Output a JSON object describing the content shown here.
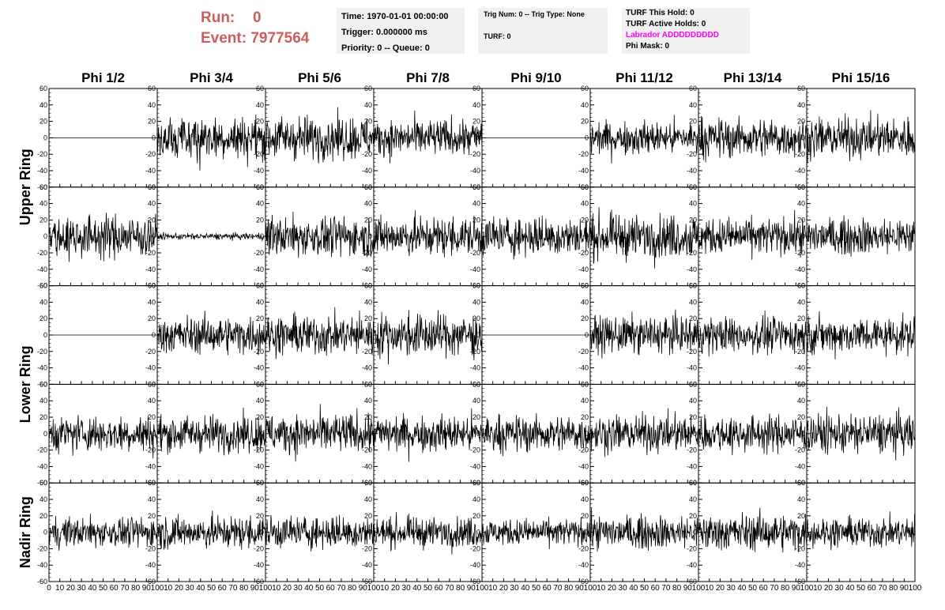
{
  "header": {
    "run_label": "Run:",
    "run_value": "0",
    "event_label": "Event:",
    "event_value": "7977564",
    "time_line": "Time: 1970-01-01 00:00:00",
    "trigger_line": "Trigger: 0.000000 ms",
    "priority_line": "Priority: 0 -- Queue: 0",
    "trig_num_line": "Trig Num: 0 -- Trig Type: None",
    "turf_line": "TURF: 0",
    "turf_this_hold": "TURF This Hold: 0",
    "turf_active_holds": "TURF Active Holds: 0",
    "labrador_line": "Labrador ADDDDDDDDD",
    "phi_mask_line": "Phi Mask: 0"
  },
  "colors": {
    "header_run": "#cd5c5c",
    "labrador": "#ff00ff",
    "info_bg": "#f0f0f0",
    "trace": "#000000"
  },
  "chart_data": {
    "type": "line",
    "columns": [
      "Phi 1/2",
      "Phi 3/4",
      "Phi 5/6",
      "Phi 7/8",
      "Phi 9/10",
      "Phi 11/12",
      "Phi 13/14",
      "Phi 15/16"
    ],
    "ring_labels": [
      "Upper Ring",
      "Lower Ring",
      "Nadir Ring"
    ],
    "ring_row_groups": [
      [
        0,
        1
      ],
      [
        2,
        3
      ],
      [
        4
      ]
    ],
    "xlim": [
      0,
      100
    ],
    "ylim": [
      -60,
      60
    ],
    "x_ticks": [
      0,
      10,
      20,
      30,
      40,
      50,
      60,
      70,
      80,
      90,
      100
    ],
    "y_ticks": [
      -60,
      -40,
      -20,
      0,
      20,
      40,
      60
    ],
    "samples_per_trace": 260,
    "panels_amplitude_rms": [
      [
        0,
        13,
        13,
        11,
        0,
        10,
        12,
        12
      ],
      [
        13,
        2,
        12,
        12,
        12,
        13,
        11,
        11
      ],
      [
        0,
        11,
        12,
        13,
        0,
        11,
        11,
        11
      ],
      [
        11,
        11,
        12,
        11,
        11,
        11,
        11,
        12
      ],
      [
        9,
        10,
        10,
        9,
        8,
        10,
        11,
        9
      ]
    ]
  }
}
